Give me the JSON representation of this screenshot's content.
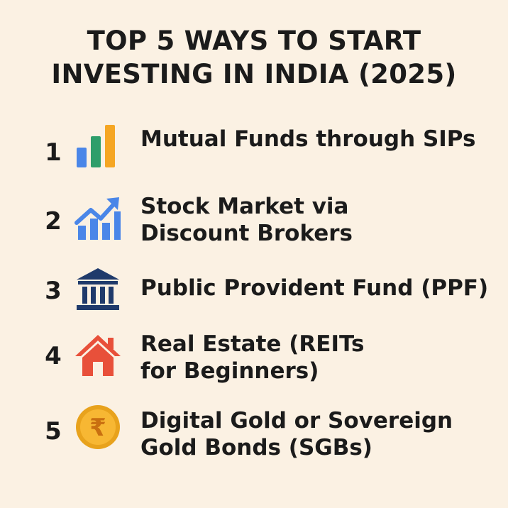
{
  "title": {
    "line1": "TOP 5 WAYS TO START",
    "line2": "INVESTING IN INDIA (2025)"
  },
  "items": [
    {
      "number": "1",
      "icon": "bar-chart-icon",
      "lines": [
        "Mutual Funds through SIPs"
      ]
    },
    {
      "number": "2",
      "icon": "trending-up-chart-icon",
      "lines": [
        "Stock Market via",
        "Discount Brokers"
      ]
    },
    {
      "number": "3",
      "icon": "bank-building-icon",
      "lines": [
        "Public Provident Fund (PPF)"
      ]
    },
    {
      "number": "4",
      "icon": "house-icon",
      "lines": [
        "Real Estate (REITs",
        "for Beginners)"
      ]
    },
    {
      "number": "5",
      "icon": "rupee-coin-icon",
      "lines": [
        "Digital Gold or Sovereign",
        "Gold Bonds (SGBs)"
      ]
    }
  ],
  "colors": {
    "background": "#fbf1e3",
    "text": "#1b1b1b",
    "blue": "#4a86e8",
    "green": "#2e9e6a",
    "orange": "#f5a623",
    "navy": "#1f3a6b",
    "red": "#e8503a",
    "gold": "#f5a623"
  }
}
